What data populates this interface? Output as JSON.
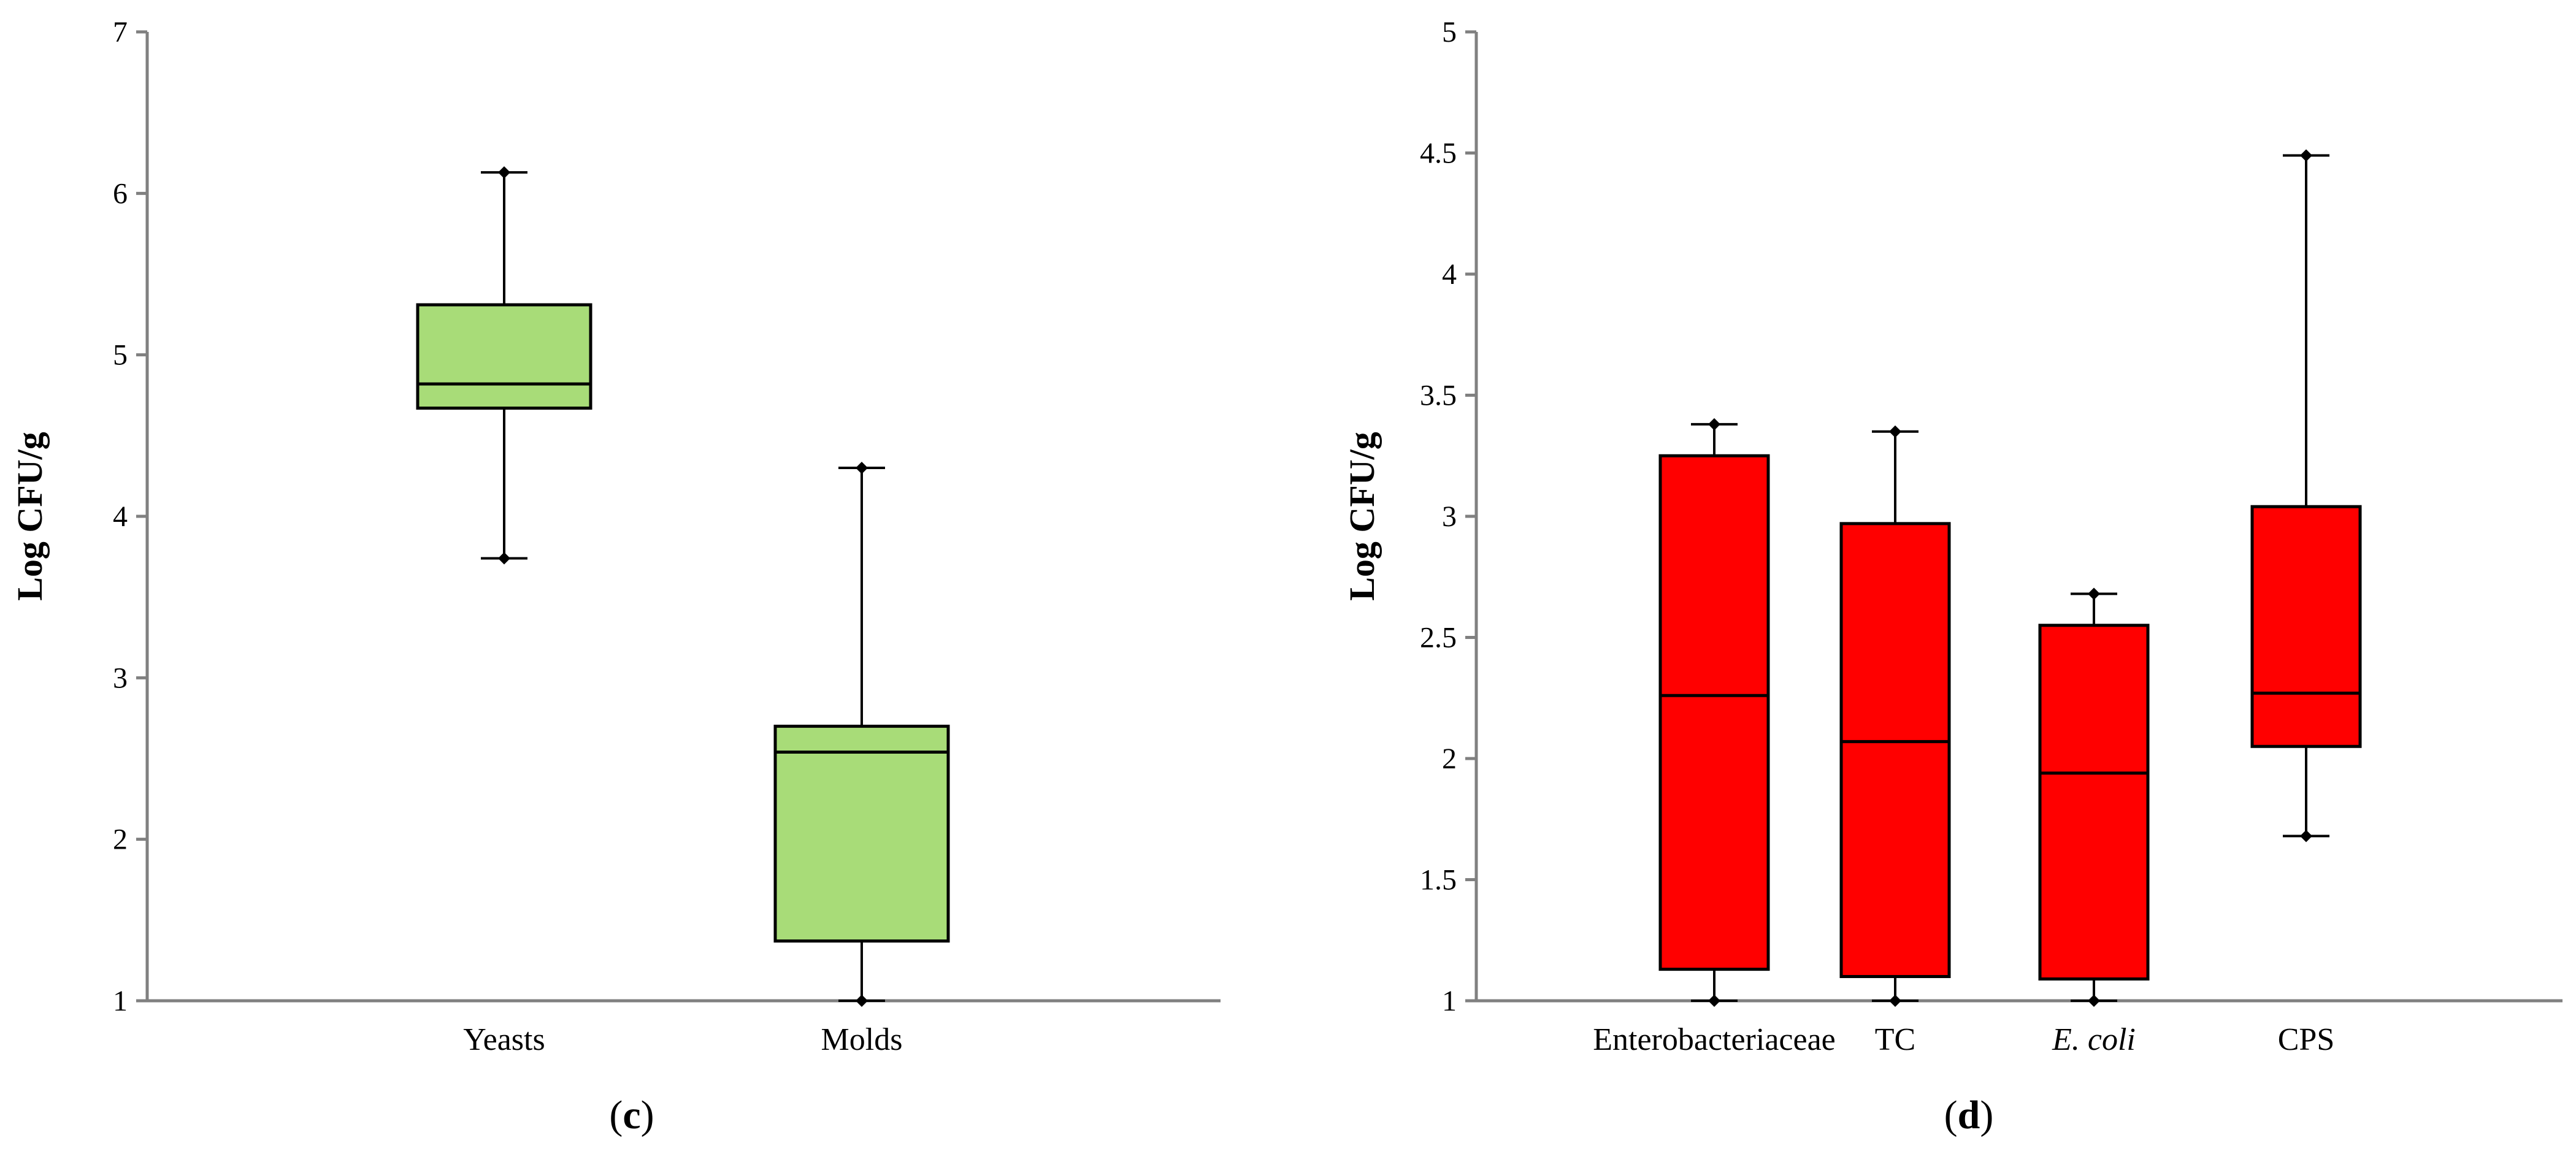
{
  "chart_data": [
    {
      "type": "box",
      "panel_label": "c",
      "ylabel": "Log CFU/g",
      "xlabel": "",
      "ylim": [
        1,
        7
      ],
      "yticks": [
        1,
        2,
        3,
        4,
        5,
        6,
        7
      ],
      "grid": false,
      "box_color": "#a8dc78",
      "categories": [
        "Yeasts",
        "Molds"
      ],
      "boxes": [
        {
          "category": "Yeasts",
          "min": 3.74,
          "q1": 4.67,
          "median": 4.82,
          "q3": 5.31,
          "max": 6.13
        },
        {
          "category": "Molds",
          "min": 1.0,
          "q1": 1.37,
          "median": 2.54,
          "q3": 2.7,
          "max": 4.3
        }
      ]
    },
    {
      "type": "box",
      "panel_label": "d",
      "ylabel": "Log CFU/g",
      "xlabel": "",
      "ylim": [
        1,
        5
      ],
      "yticks": [
        1,
        1.5,
        2,
        2.5,
        3,
        3.5,
        4,
        4.5,
        5
      ],
      "grid": false,
      "box_color": "#ff0000",
      "categories": [
        "Enterobacteriaceae",
        "TC",
        "E. coli",
        "CPS"
      ],
      "italic_categories": [
        "E. coli"
      ],
      "boxes": [
        {
          "category": "Enterobacteriaceae",
          "min": 1.0,
          "q1": 1.13,
          "median": 2.26,
          "q3": 3.25,
          "max": 3.38
        },
        {
          "category": "TC",
          "min": 1.0,
          "q1": 1.1,
          "median": 2.07,
          "q3": 2.97,
          "max": 3.35
        },
        {
          "category": "E. coli",
          "min": 1.0,
          "q1": 1.09,
          "median": 1.94,
          "q3": 2.55,
          "max": 2.68
        },
        {
          "category": "CPS",
          "min": 1.68,
          "q1": 2.05,
          "median": 2.27,
          "q3": 3.04,
          "max": 4.49
        }
      ]
    }
  ]
}
